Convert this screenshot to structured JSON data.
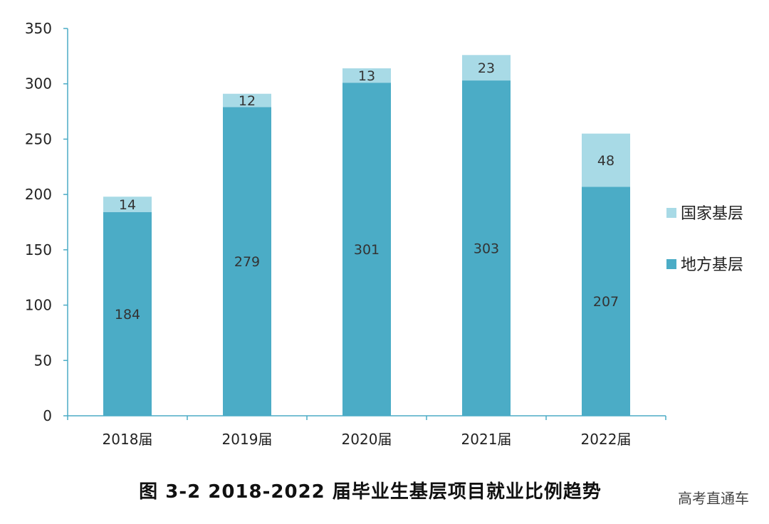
{
  "chart_data": {
    "type": "bar",
    "stacked": true,
    "categories": [
      "2018届",
      "2019届",
      "2020届",
      "2021届",
      "2022届"
    ],
    "series": [
      {
        "name": "地方基层",
        "color": "#4BACC6",
        "values": [
          184,
          279,
          301,
          303,
          207
        ]
      },
      {
        "name": "国家基层",
        "color": "#A8DAE6",
        "values": [
          14,
          12,
          13,
          23,
          48
        ]
      }
    ],
    "ylim": [
      0,
      350
    ],
    "yticks": [
      0,
      50,
      100,
      150,
      200,
      250,
      300,
      350
    ],
    "title": "图 3-2   2018-2022 届毕业生基层项目就业比例趋势",
    "legend_position": "right",
    "axis_color": "#4BACC6"
  },
  "watermark": "高考直通车"
}
